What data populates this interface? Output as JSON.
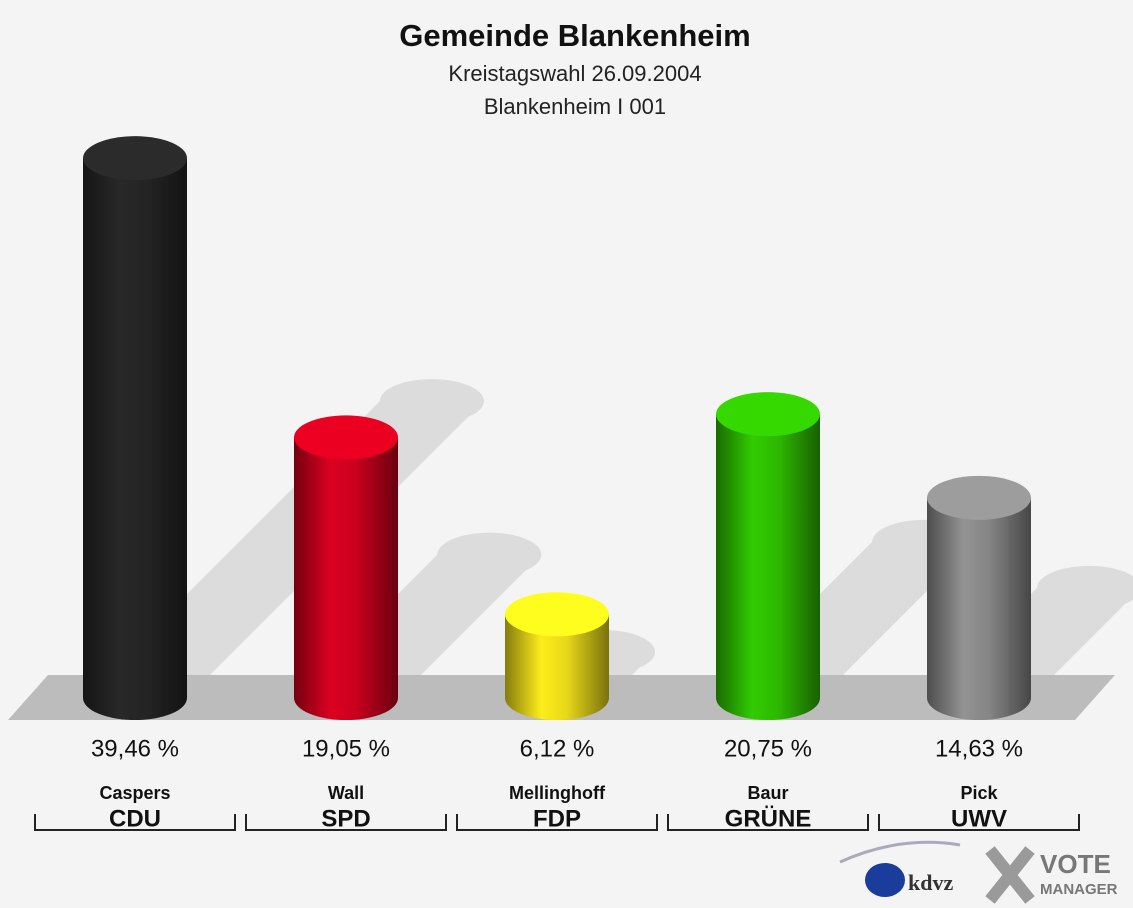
{
  "chart_data": {
    "type": "bar",
    "title": "Gemeinde Blankenheim",
    "subtitle": [
      "Kreistagswahl 26.09.2004",
      "Blankenheim I 001"
    ],
    "categories": [
      "CDU",
      "SPD",
      "FDP",
      "GRÜNE",
      "UWV"
    ],
    "candidates": [
      "Caspers",
      "Wall",
      "Mellinghoff",
      "Baur",
      "Pick"
    ],
    "values": [
      39.46,
      19.05,
      6.12,
      20.75,
      14.63
    ],
    "value_labels": [
      "39,46 %",
      "19,05 %",
      "6,12 %",
      "20,75 %",
      "14,63 %"
    ],
    "colors": [
      "#262626",
      "#d2001e",
      "#f2e21a",
      "#2fc200",
      "#8c8c8c"
    ]
  },
  "logo": {
    "brand": "kdvz",
    "product": [
      "VOTE",
      "MANAGER"
    ]
  }
}
